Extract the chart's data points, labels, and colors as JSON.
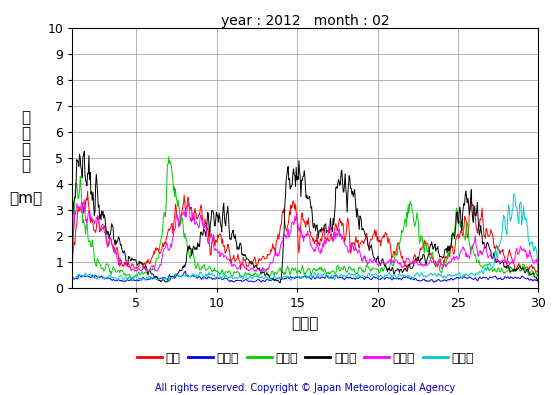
{
  "title": "year : 2012   month : 02",
  "xlabel": "（日）",
  "ylabel_lines": [
    "有",
    "義",
    "波",
    "高",
    "",
    "（m）"
  ],
  "xlim": [
    1,
    30
  ],
  "ylim": [
    0,
    10
  ],
  "yticks": [
    0,
    1,
    2,
    3,
    4,
    5,
    6,
    7,
    8,
    9,
    10
  ],
  "xticks": [
    5,
    10,
    15,
    20,
    25,
    30
  ],
  "copyright": "All rights reserved. Copyright © Japan Meteorological Agency",
  "legend": [
    {
      "label": "松前",
      "color": "#ff0000"
    },
    {
      "label": "江ノ島",
      "color": "#0000ff"
    },
    {
      "label": "石廉岬",
      "color": "#00cc00"
    },
    {
      "label": "経ヶ岸",
      "color": "#000000"
    },
    {
      "label": "福江島",
      "color": "#ff00ff"
    },
    {
      "label": "佐多岸",
      "color": "#00cccc"
    }
  ],
  "background_color": "#ffffff",
  "grid_color": "#999999"
}
